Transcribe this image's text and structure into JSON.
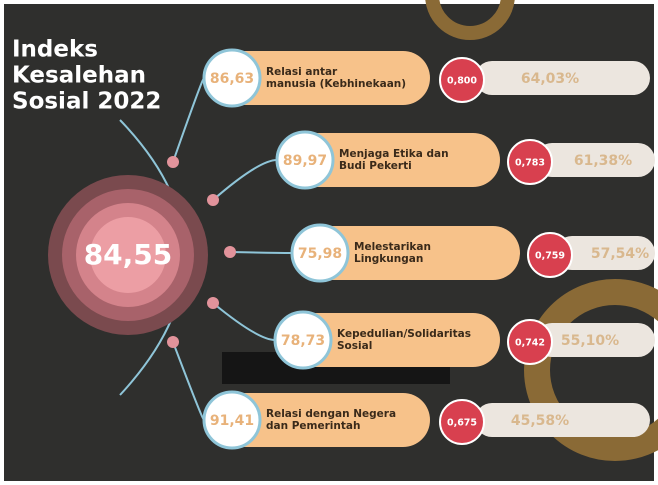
{
  "title": [
    "Indeks",
    "Kesalehan",
    "Sosial 2022"
  ],
  "center_value": "84,55",
  "items": [
    {
      "score": "86,63",
      "label": [
        "Relasi antar",
        "manusia (Kebhinekaan)"
      ],
      "weight": "0,800",
      "percent": "64,03%"
    },
    {
      "score": "89,97",
      "label": [
        "Menjaga Etika dan",
        "Budi Pekerti"
      ],
      "weight": "0,783",
      "percent": "61,38%"
    },
    {
      "score": "75,98",
      "label": [
        "Melestarikan",
        "Lingkungan"
      ],
      "weight": "0,759",
      "percent": "57,54%"
    },
    {
      "score": "78,73",
      "label": [
        "Kepedulian/Solidaritas",
        "Sosial"
      ],
      "weight": "0,742",
      "percent": "55,10%"
    },
    {
      "score": "91,41",
      "label": [
        "Relasi dengan Negera",
        "dan Pemerintah"
      ],
      "weight": "0,675",
      "percent": "45,58%"
    }
  ]
}
